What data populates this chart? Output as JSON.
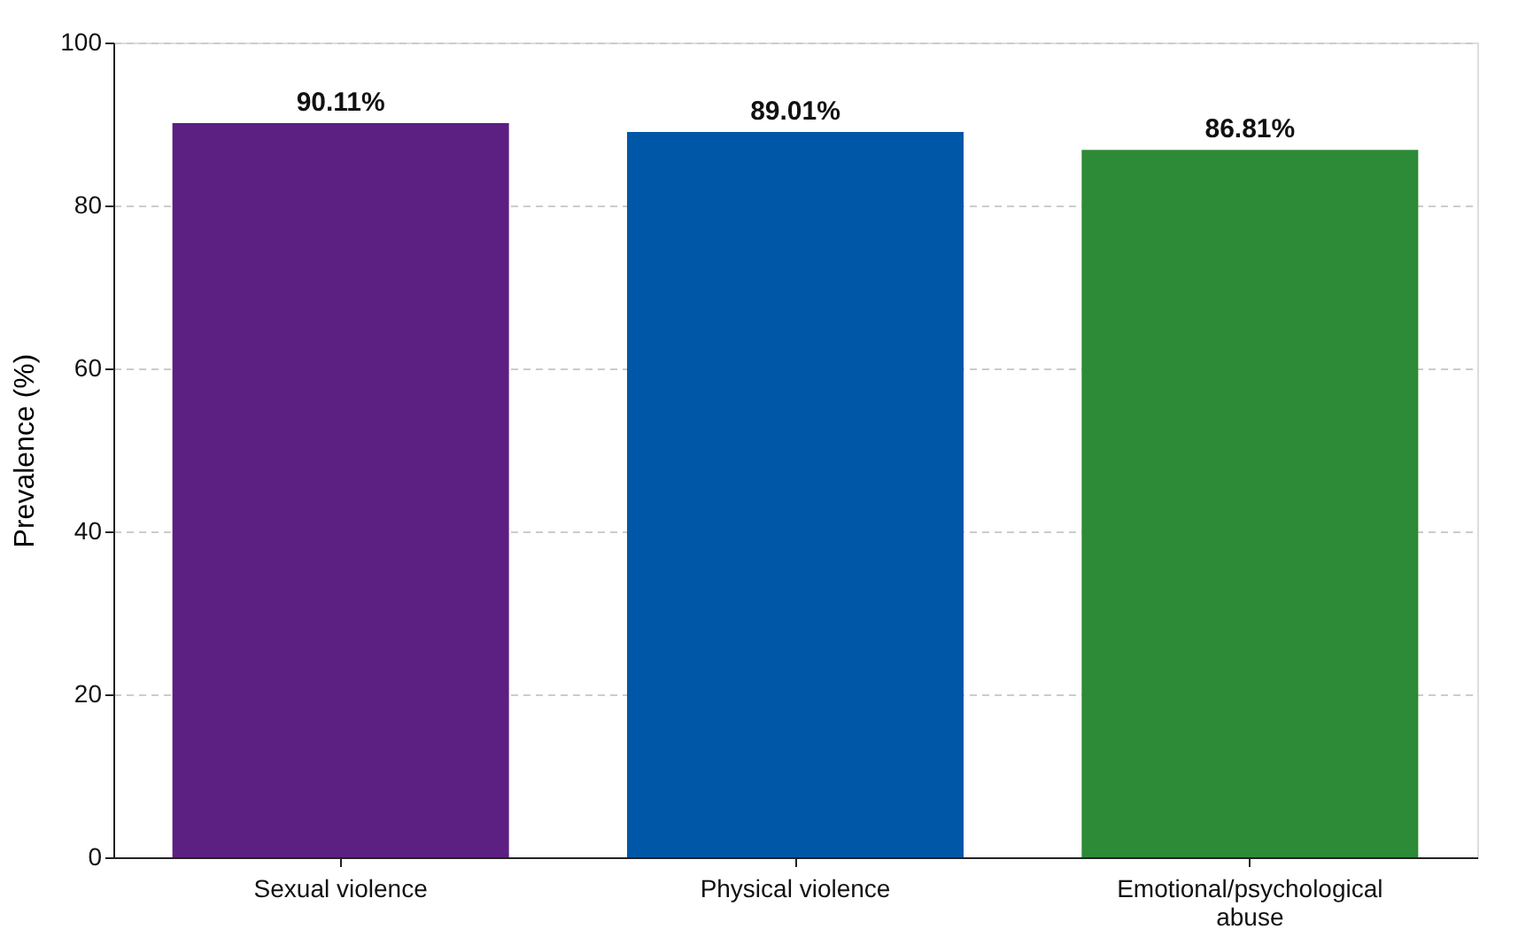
{
  "chart_data": {
    "type": "bar",
    "ylabel": "Prevalence (%)",
    "categories": [
      "Sexual violence",
      "Physical violence",
      "Emotional/psychological abuse"
    ],
    "values": [
      90.11,
      89.01,
      86.81
    ],
    "colors": [
      "#5c1f82",
      "#0057a8",
      "#2d8a36"
    ],
    "value_labels": [
      "90.11%",
      "89.01%",
      "86.81%"
    ],
    "ylim": [
      0,
      100
    ],
    "yticks": [
      0,
      20,
      40,
      60,
      80,
      100
    ],
    "grid": "y"
  }
}
